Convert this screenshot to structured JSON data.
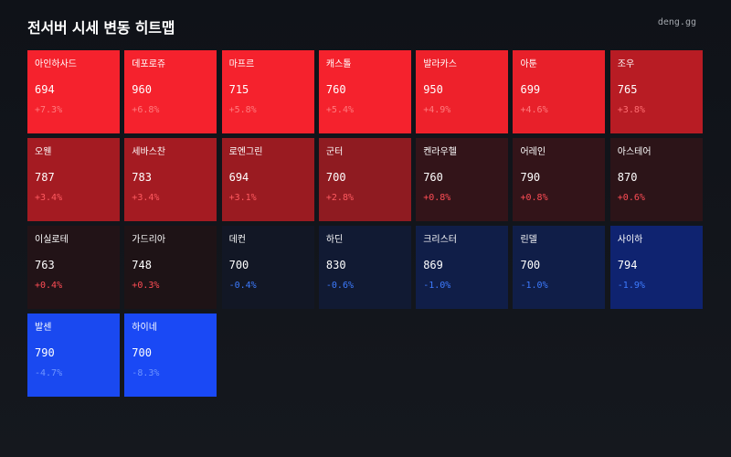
{
  "header": {
    "title": "전서버 시세 변동 히트맵",
    "brand": "deng.gg"
  },
  "tiles": [
    {
      "name": "아인하사드",
      "price": "694",
      "change": "+7.3%",
      "bg": "#f5222d",
      "change_color": "#ff7b7e"
    },
    {
      "name": "데포로쥬",
      "price": "960",
      "change": "+6.8%",
      "bg": "#f5222d",
      "change_color": "#ff7b7e"
    },
    {
      "name": "마프르",
      "price": "715",
      "change": "+5.8%",
      "bg": "#f5222d",
      "change_color": "#ff7b7e"
    },
    {
      "name": "캐스톨",
      "price": "760",
      "change": "+5.4%",
      "bg": "#f5222d",
      "change_color": "#ff7b7e"
    },
    {
      "name": "발라카스",
      "price": "950",
      "change": "+4.9%",
      "bg": "#ee212b",
      "change_color": "#ff7b7e"
    },
    {
      "name": "아툰",
      "price": "699",
      "change": "+4.6%",
      "bg": "#e8202a",
      "change_color": "#ff7b7e"
    },
    {
      "name": "조우",
      "price": "765",
      "change": "+3.8%",
      "bg": "#b81c24",
      "change_color": "#ff6d71"
    },
    {
      "name": "오웬",
      "price": "787",
      "change": "+3.4%",
      "bg": "#a41b22",
      "change_color": "#ff5a60"
    },
    {
      "name": "세바스찬",
      "price": "783",
      "change": "+3.4%",
      "bg": "#a41b22",
      "change_color": "#ff5a60"
    },
    {
      "name": "로엔그린",
      "price": "694",
      "change": "+3.1%",
      "bg": "#9a1b21",
      "change_color": "#ff5a60"
    },
    {
      "name": "군터",
      "price": "700",
      "change": "+2.8%",
      "bg": "#8f1b21",
      "change_color": "#ff5a60"
    },
    {
      "name": "켄라우헬",
      "price": "760",
      "change": "+0.8%",
      "bg": "#331419",
      "change_color": "#ff4d55"
    },
    {
      "name": "어레인",
      "price": "790",
      "change": "+0.8%",
      "bg": "#331419",
      "change_color": "#ff4d55"
    },
    {
      "name": "아스테어",
      "price": "870",
      "change": "+0.6%",
      "bg": "#2c1418",
      "change_color": "#ff4d55"
    },
    {
      "name": "이실로테",
      "price": "763",
      "change": "+0.4%",
      "bg": "#221317",
      "change_color": "#ff4d55"
    },
    {
      "name": "가드리아",
      "price": "748",
      "change": "+0.3%",
      "bg": "#1e1316",
      "change_color": "#ff4d55"
    },
    {
      "name": "데컨",
      "price": "700",
      "change": "-0.4%",
      "bg": "#121725",
      "change_color": "#3d7bff"
    },
    {
      "name": "하딘",
      "price": "830",
      "change": "-0.6%",
      "bg": "#111a33",
      "change_color": "#3d7bff"
    },
    {
      "name": "크리스터",
      "price": "869",
      "change": "-1.0%",
      "bg": "#101e48",
      "change_color": "#3d7bff"
    },
    {
      "name": "린델",
      "price": "700",
      "change": "-1.0%",
      "bg": "#101e48",
      "change_color": "#3d7bff"
    },
    {
      "name": "사이하",
      "price": "794",
      "change": "-1.9%",
      "bg": "#0f2370",
      "change_color": "#3d7bff"
    },
    {
      "name": "발센",
      "price": "790",
      "change": "-4.7%",
      "bg": "#1a49f0",
      "change_color": "#6e95ff"
    },
    {
      "name": "하이네",
      "price": "700",
      "change": "-8.3%",
      "bg": "#1a49f5",
      "change_color": "#6e95ff"
    }
  ]
}
